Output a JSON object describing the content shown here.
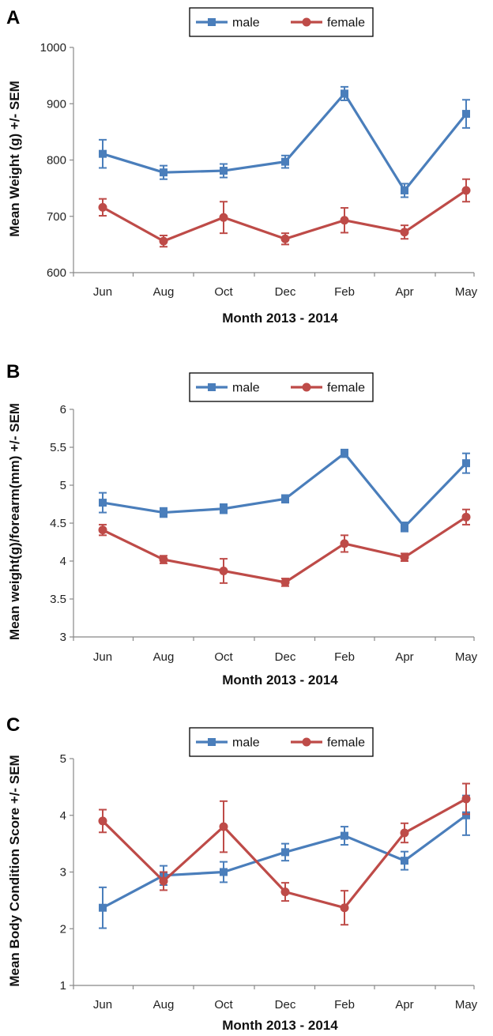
{
  "colors": {
    "male": "#4a7ebb",
    "female": "#be4b48",
    "axis": "#888888"
  },
  "chart_data": [
    {
      "panel": "A",
      "type": "line",
      "categories": [
        "Jun",
        "Aug",
        "Oct",
        "Dec",
        "Feb",
        "Apr",
        "May"
      ],
      "xlabel": "Month 2013 - 2014",
      "ylabel": "Mean Weight (g) +/- SEM",
      "ylim": [
        600,
        1000
      ],
      "yticks": [
        600,
        700,
        800,
        900,
        1000
      ],
      "legend": "top-center",
      "grid": false,
      "series": [
        {
          "name": "male",
          "marker": "square",
          "values": [
            811,
            778,
            781,
            797,
            918,
            746,
            882
          ],
          "sem": [
            25,
            12,
            12,
            11,
            12,
            12,
            25
          ]
        },
        {
          "name": "female",
          "marker": "circle",
          "values": [
            716,
            656,
            698,
            660,
            693,
            672,
            746
          ],
          "sem": [
            15,
            10,
            28,
            10,
            22,
            12,
            20
          ]
        }
      ]
    },
    {
      "panel": "B",
      "type": "line",
      "categories": [
        "Jun",
        "Aug",
        "Oct",
        "Dec",
        "Feb",
        "Apr",
        "May"
      ],
      "xlabel": "Month 2013 - 2014",
      "ylabel": "Mean weight(g)/forearm(mm) +/- SEM",
      "ylim": [
        3,
        6
      ],
      "yticks": [
        "3",
        "3.5",
        "4",
        "4.5",
        "5",
        "5.5",
        "6"
      ],
      "legend": "top-center",
      "grid": false,
      "series": [
        {
          "name": "male",
          "marker": "square",
          "values": [
            4.77,
            4.64,
            4.69,
            4.82,
            5.42,
            4.45,
            5.29
          ],
          "sem": [
            0.13,
            0.06,
            0.06,
            0.05,
            0.05,
            0.06,
            0.13
          ]
        },
        {
          "name": "female",
          "marker": "circle",
          "values": [
            4.41,
            4.02,
            3.87,
            3.72,
            4.23,
            4.05,
            4.58
          ],
          "sem": [
            0.07,
            0.05,
            0.16,
            0.05,
            0.11,
            0.05,
            0.1
          ]
        }
      ]
    },
    {
      "panel": "C",
      "type": "line",
      "categories": [
        "Jun",
        "Aug",
        "Oct",
        "Dec",
        "Feb",
        "Apr",
        "May"
      ],
      "xlabel": "Month 2013 - 2014",
      "ylabel": "Mean Body Condition Score +/- SEM",
      "ylim": [
        1,
        5
      ],
      "yticks": [
        1,
        2,
        3,
        4,
        5
      ],
      "legend": "top-center",
      "grid": false,
      "series": [
        {
          "name": "male",
          "marker": "square",
          "values": [
            2.37,
            2.94,
            3.0,
            3.35,
            3.64,
            3.2,
            4.0
          ],
          "sem": [
            0.36,
            0.17,
            0.18,
            0.15,
            0.16,
            0.16,
            0.35
          ]
        },
        {
          "name": "female",
          "marker": "circle",
          "values": [
            3.9,
            2.84,
            3.8,
            2.65,
            2.37,
            3.69,
            4.29
          ],
          "sem": [
            0.2,
            0.16,
            0.45,
            0.16,
            0.3,
            0.17,
            0.27
          ]
        }
      ]
    }
  ]
}
